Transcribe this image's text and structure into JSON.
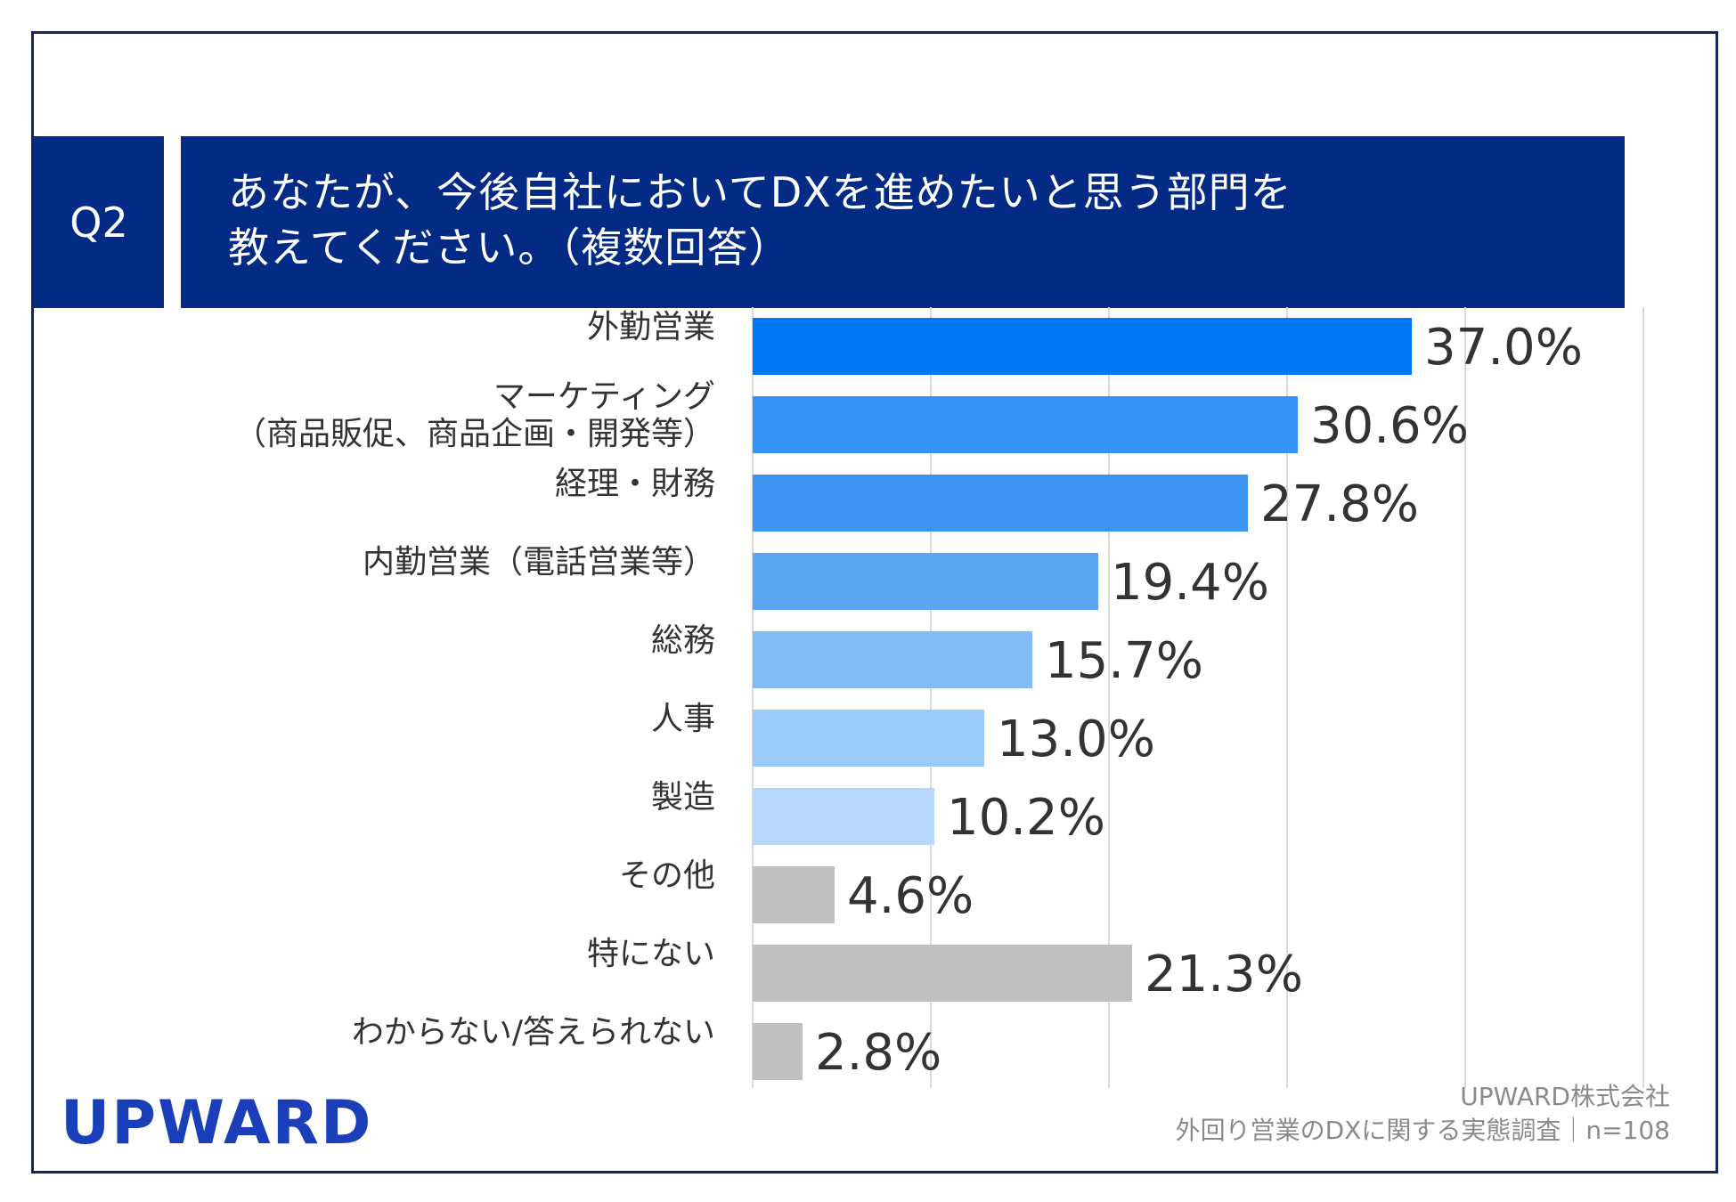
{
  "question": {
    "number": "Q2",
    "line1": "あなたが、今後自社においてDXを進めたいと思う部門を",
    "line2": "教えてください。（複数回答）"
  },
  "chart_data": {
    "type": "bar",
    "orientation": "horizontal",
    "categories": [
      "外勤営業",
      "マーケティング\n（商品販促、商品企画・開発等）",
      "経理・財務",
      "内勤営業（電話営業等）",
      "総務",
      "人事",
      "製造",
      "その他",
      "特にない",
      "わからない/答えられない"
    ],
    "values": [
      37.0,
      30.6,
      27.8,
      19.4,
      15.7,
      13.0,
      10.2,
      4.6,
      21.3,
      2.8
    ],
    "value_labels": [
      "37.0%",
      "30.6%",
      "27.8%",
      "19.4%",
      "15.7%",
      "13.0%",
      "10.2%",
      "4.6%",
      "21.3%",
      "2.8%"
    ],
    "bar_colors": [
      "#0078f6",
      "#3593f8",
      "#3d93f0",
      "#5aa5f4",
      "#82bcf8",
      "#9acaf9",
      "#b7d8fb",
      "#bfbfbf",
      "#bfbfbf",
      "#bfbfbf"
    ],
    "xlim": [
      0,
      50
    ],
    "grid": true,
    "unit": "%"
  },
  "footer": {
    "logo": "UPWARD",
    "company": "UPWARD株式会社",
    "survey": "外回り営業のDXに関する実態調査｜n=108"
  }
}
